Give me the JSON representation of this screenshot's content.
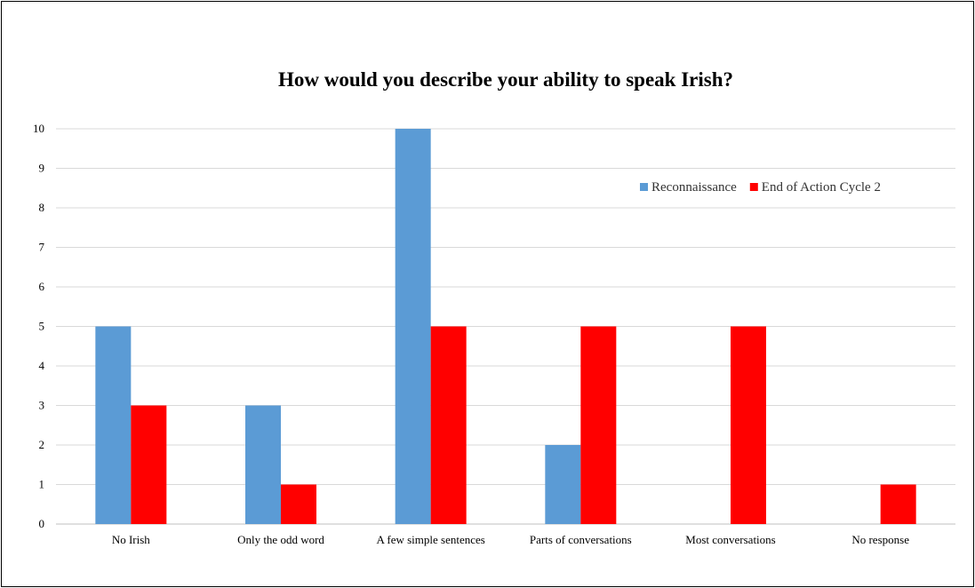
{
  "chart_data": {
    "type": "bar",
    "title": "How would you describe your ability to speak Irish?",
    "xlabel": "",
    "ylabel": "",
    "categories": [
      "No Irish",
      "Only the odd word",
      "A few simple sentences",
      "Parts of conversations",
      "Most conversations",
      "No response"
    ],
    "series": [
      {
        "name": "Reconnaissance",
        "color": "#5b9bd5",
        "values": [
          5,
          3,
          10,
          2,
          0,
          0
        ]
      },
      {
        "name": "End of Action Cycle 2",
        "color": "#ff0000",
        "values": [
          3,
          1,
          5,
          5,
          5,
          1
        ]
      }
    ],
    "ylim": [
      0,
      10
    ],
    "yticks": [
      "0",
      "1",
      "2",
      "3",
      "4",
      "5",
      "6",
      "7",
      "8",
      "9",
      "10"
    ],
    "grid": true,
    "legend_position": "top-right"
  }
}
